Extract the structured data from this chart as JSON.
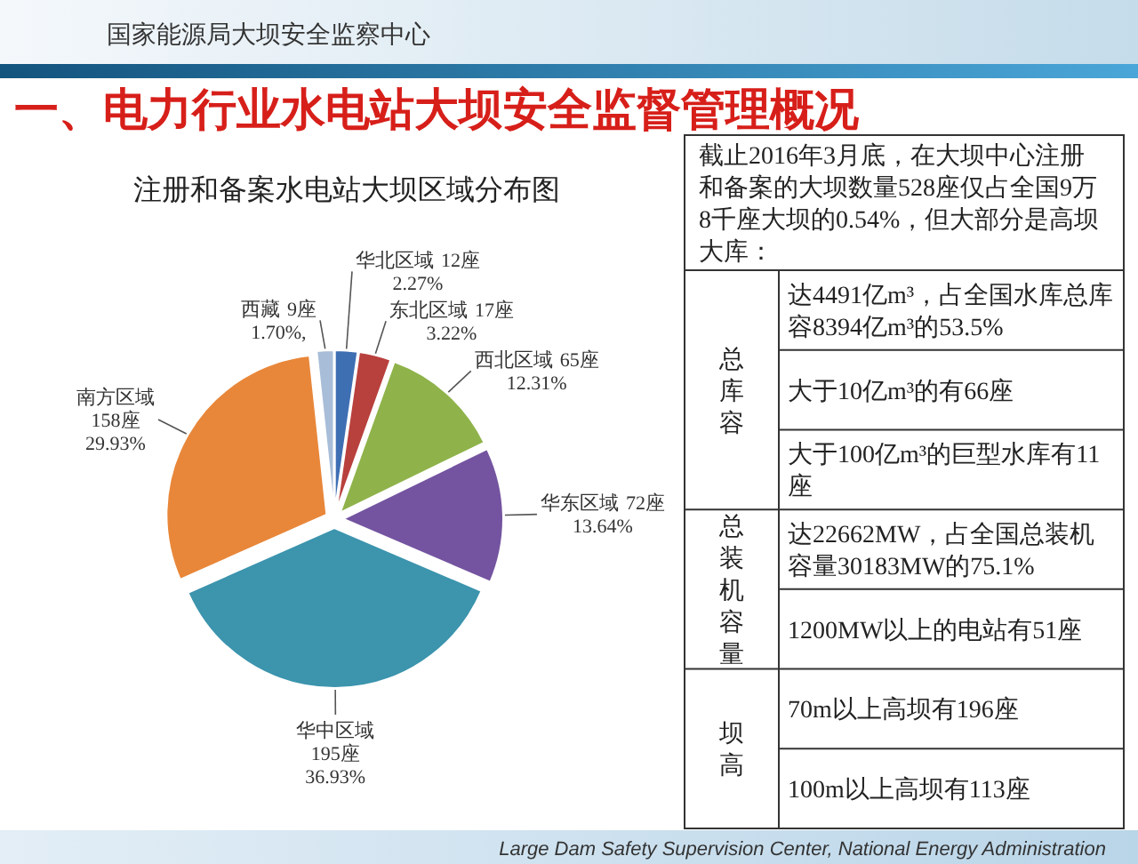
{
  "chart_data": [
    {
      "type": "other",
      "title": "一、电力行业水电站大坝安全监督管理概况",
      "annotations": [
        "国家能源局大坝安全监察中心",
        "Large Dam Safety Supervision Center, National Energy Administration"
      ]
    },
    {
      "type": "pie",
      "title": "注册和备案水电站大坝区域分布图",
      "categories": [
        "华北区域",
        "东北区域",
        "西北区域",
        "华东区域",
        "华中区域",
        "南方区域",
        "西藏"
      ],
      "values": [
        12,
        17,
        65,
        72,
        195,
        158,
        9
      ],
      "colors": [
        "#3f6fb3",
        "#b8403d",
        "#8fb34a",
        "#7454a0",
        "#3c94ad",
        "#e8873a",
        "#a8bdd8"
      ],
      "value_labels": [
        "12座 2.27%",
        "17座 3.22%",
        "65座 12.31%",
        "72座 13.64%",
        "195座 36.93%",
        "158座 29.93%",
        "9座 1.70%,"
      ]
    },
    {
      "type": "other",
      "title": "截止2016年3月底，在大坝中心注册和备案的大坝数量528座仅占全国9万8千座大坝的0.54%，但大部分是高坝大库：",
      "y_categories": [
        "总库容",
        "总装机容量",
        "坝高"
      ],
      "cell_labels": [
        [
          "达4491亿m³，占全国水库总库容8394亿m³的53.5%",
          "大于10亿m³的有66座",
          "大于100亿m³的巨型水库有11座"
        ],
        [
          "达22662MW，占全国总装机容量30183MW的75.1%",
          "1200MW以上的电站有51座"
        ],
        [
          "70m以上高坝有196座",
          "100m以上高坝有113座"
        ]
      ]
    }
  ]
}
